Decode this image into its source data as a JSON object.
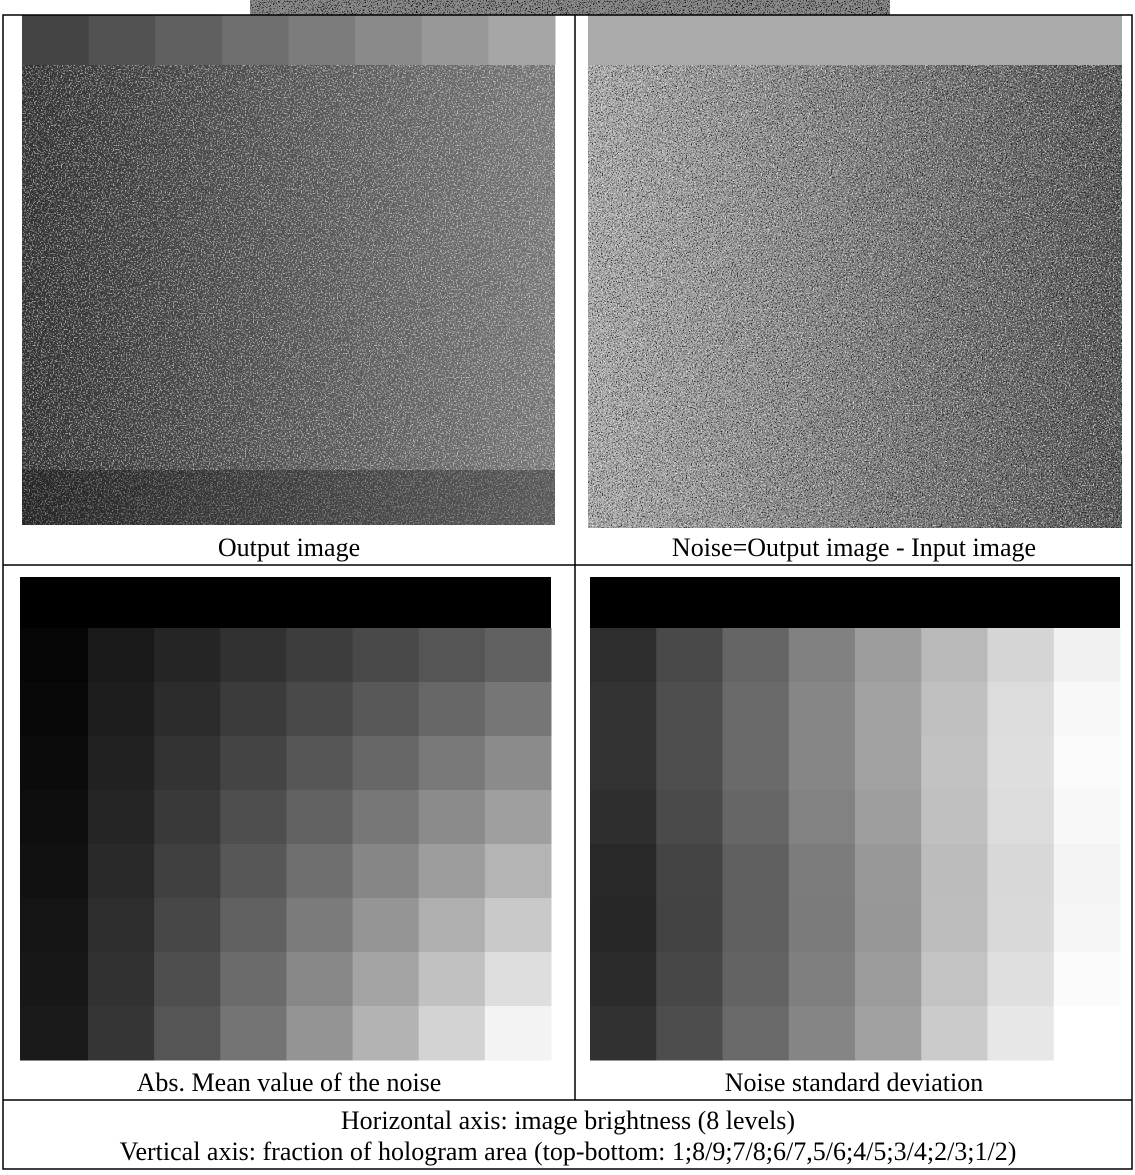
{
  "panels": [
    {
      "caption": "Output image"
    },
    {
      "caption": "Noise=Output image - Input image"
    },
    {
      "caption": "Abs. Mean value of the noise"
    },
    {
      "caption": "Noise standard deviation"
    }
  ],
  "footer": {
    "lines": [
      "Horizontal axis: image brightness (8 levels)",
      "Vertical axis: fraction of hologram area (top-bottom: 1;8/9;7/8;6/7,5/6;4/5;3/4;2/3;1/2)"
    ]
  }
}
